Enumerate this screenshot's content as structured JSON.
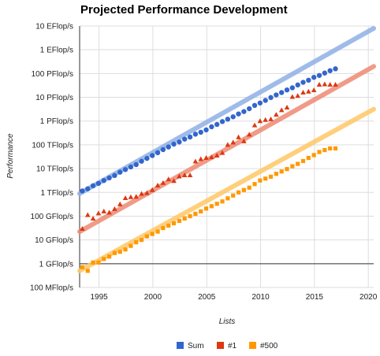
{
  "chart_data": {
    "type": "scatter",
    "title": "Projected Performance Development",
    "xlabel": "Lists",
    "ylabel": "Performance",
    "yscale": "log10",
    "xlim": [
      1993.2,
      2020.5
    ],
    "ylim_log10": [
      -1,
      7
    ],
    "y_unit_note": "GFlop/s",
    "x_ticks": [
      {
        "v": 1995,
        "label": "1995"
      },
      {
        "v": 2000,
        "label": "2000"
      },
      {
        "v": 2005,
        "label": "2005"
      },
      {
        "v": 2010,
        "label": "2010"
      },
      {
        "v": 2015,
        "label": "2015"
      },
      {
        "v": 2020,
        "label": "2020"
      }
    ],
    "y_ticks": [
      {
        "v": 7,
        "label": "10 EFlop/s"
      },
      {
        "v": 6,
        "label": "1 EFlop/s"
      },
      {
        "v": 5,
        "label": "100 PFlop/s"
      },
      {
        "v": 4,
        "label": "10 PFlop/s"
      },
      {
        "v": 3,
        "label": "1 PFlop/s"
      },
      {
        "v": 2,
        "label": "100 TFlop/s"
      },
      {
        "v": 1,
        "label": "10 TFlop/s"
      },
      {
        "v": 0,
        "label": "1 TFlop/s"
      },
      {
        "v": -1,
        "label": "100 GFlop/s"
      },
      {
        "v": -2,
        "label": "10 GFlop/s"
      },
      {
        "v": -3,
        "label": "1 GFlop/s"
      },
      {
        "v": -4,
        "label": "100 MFlop/s"
      }
    ],
    "grid": true,
    "legend_position": "bottom",
    "series": [
      {
        "name": "Sum",
        "color": "#3366cc",
        "trend_color": "#8fb0e6",
        "marker": "circle",
        "trend_log10": [
          [
            1993.2,
            -0.05
          ],
          [
            2020.5,
            6.9
          ]
        ],
        "x_start": 1993.45,
        "x_step": 0.5,
        "log10_values": [
          0.06,
          0.15,
          0.28,
          0.38,
          0.5,
          0.61,
          0.71,
          0.85,
          0.96,
          1.07,
          1.17,
          1.31,
          1.43,
          1.55,
          1.67,
          1.8,
          1.91,
          2.03,
          2.12,
          2.24,
          2.33,
          2.45,
          2.53,
          2.63,
          2.76,
          2.86,
          2.98,
          3.08,
          3.18,
          3.3,
          3.4,
          3.52,
          3.66,
          3.76,
          3.87,
          3.99,
          4.1,
          4.2,
          4.31,
          4.4,
          4.52,
          4.63,
          4.72,
          4.84,
          4.92,
          5.02,
          5.12,
          5.2
        ]
      },
      {
        "name": "#1",
        "color": "#dc3912",
        "trend_color": "#ee8a74",
        "marker": "triangle",
        "trend_log10": [
          [
            1993.2,
            -1.65
          ],
          [
            2020.5,
            5.3
          ]
        ],
        "x_start": 1993.45,
        "x_step": 0.5,
        "log10_values": [
          -1.53,
          -0.95,
          -1.1,
          -0.88,
          -0.8,
          -0.85,
          -0.7,
          -0.5,
          -0.24,
          -0.2,
          -0.18,
          -0.06,
          -0.03,
          0.1,
          0.29,
          0.4,
          0.55,
          0.48,
          0.67,
          0.72,
          0.72,
          1.3,
          1.4,
          1.45,
          1.48,
          1.55,
          1.66,
          2.0,
          2.1,
          2.32,
          2.15,
          2.43,
          2.82,
          3.0,
          3.05,
          3.08,
          3.27,
          3.46,
          3.57,
          4.02,
          4.06,
          4.2,
          4.24,
          4.3,
          4.53,
          4.55,
          4.53,
          4.53
        ]
      },
      {
        "name": "#500",
        "color": "#ff9900",
        "trend_color": "#ffc766",
        "marker": "square",
        "trend_log10": [
          [
            1993.2,
            -3.3
          ],
          [
            2020.5,
            3.5
          ]
        ],
        "x_start": 1993.45,
        "x_step": 0.5,
        "log10_values": [
          -3.15,
          -3.3,
          -2.95,
          -2.95,
          -2.8,
          -2.7,
          -2.55,
          -2.5,
          -2.4,
          -2.25,
          -2.1,
          -2.0,
          -1.85,
          -1.75,
          -1.65,
          -1.5,
          -1.4,
          -1.3,
          -1.2,
          -1.1,
          -1.0,
          -0.9,
          -0.8,
          -0.68,
          -0.58,
          -0.48,
          -0.38,
          -0.25,
          -0.13,
          0.0,
          0.1,
          0.2,
          0.35,
          0.5,
          0.58,
          0.66,
          0.78,
          0.88,
          0.98,
          1.1,
          1.2,
          1.32,
          1.45,
          1.57,
          1.7,
          1.78,
          1.85,
          1.85
        ]
      }
    ]
  }
}
